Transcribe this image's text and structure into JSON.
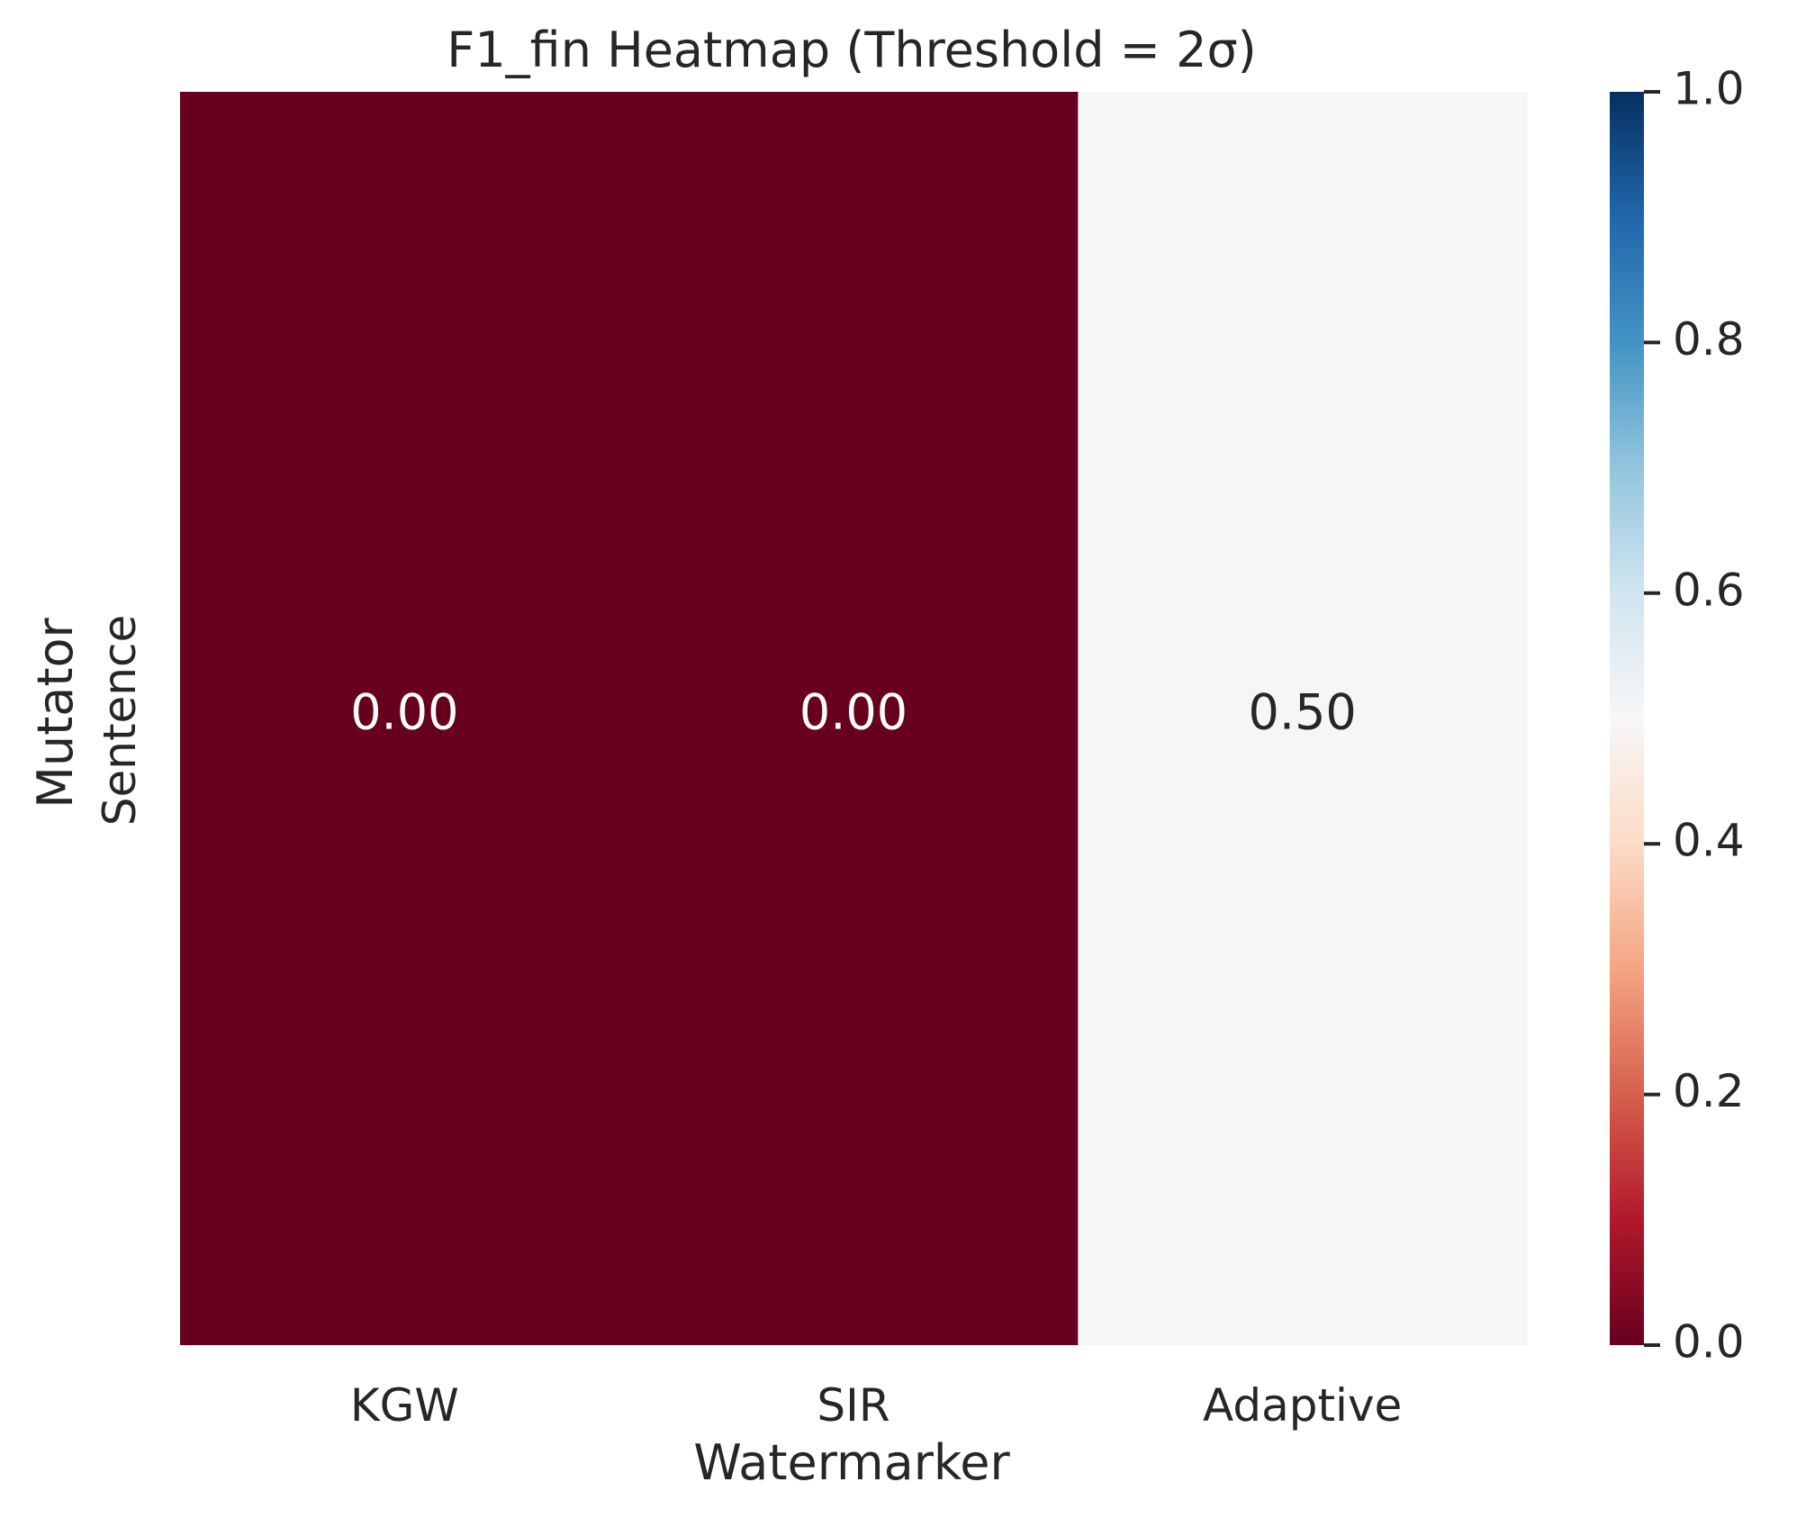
{
  "chart_data": {
    "type": "heatmap",
    "title": "F1_fin Heatmap (Threshold = 2σ)",
    "xlabel": "Watermarker",
    "ylabel": "Mutator",
    "x_categories": [
      "KGW",
      "SIR",
      "Adaptive"
    ],
    "y_categories": [
      "Sentence"
    ],
    "values": [
      [
        0.0,
        0.0,
        0.5
      ]
    ],
    "cell_labels": [
      [
        "0.00",
        "0.00",
        "0.50"
      ]
    ],
    "colormap": "RdBu",
    "colorbar": {
      "range": [
        0.0,
        1.0
      ],
      "ticks": [
        0.0,
        0.2,
        0.4,
        0.6,
        0.8,
        1.0
      ],
      "tick_labels": [
        "0.0",
        "0.2",
        "0.4",
        "0.6",
        "0.8",
        "1.0"
      ]
    },
    "colors": {
      "low": "#67001f",
      "mid": "#f5f6f6",
      "high": "#053061",
      "text_on_dark": "#ffffff",
      "text_on_light": "#262626"
    }
  }
}
